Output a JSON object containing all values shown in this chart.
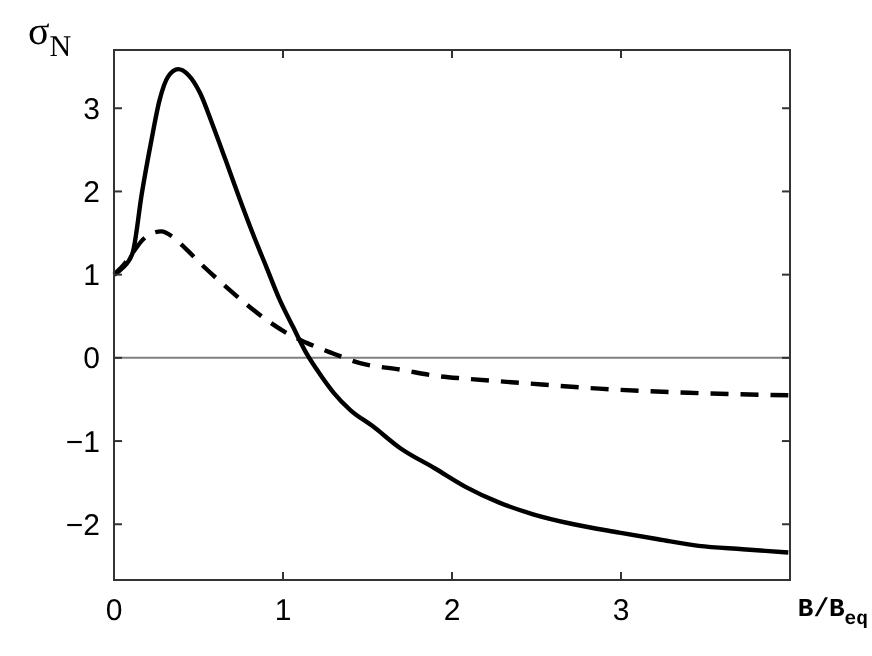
{
  "chart_data": {
    "type": "line",
    "xlabel": "B/B$_{eq}$",
    "ylabel": "σ$_{N}$",
    "xlim": [
      0,
      4
    ],
    "ylim": [
      -2.67,
      3.7
    ],
    "xticks": [
      0,
      1,
      2,
      3
    ],
    "yticks": [
      -2,
      -1,
      0,
      1,
      2,
      3
    ],
    "grid": false,
    "marker": "none",
    "ref_lines": [
      {
        "axis": "y",
        "value": 0,
        "color": "#808080"
      }
    ],
    "series": [
      {
        "color": "#000000",
        "line_style": "solid",
        "x": [
          0,
          0.05,
          0.11,
          0.165,
          0.22,
          0.27,
          0.32,
          0.38,
          0.44,
          0.51,
          0.58,
          0.66,
          0.74,
          0.82,
          0.9,
          0.98,
          1.06,
          1.14,
          1.22,
          1.3,
          1.4,
          1.53,
          1.69,
          1.9,
          2.08,
          2.28,
          2.48,
          2.72,
          2.99,
          3.22,
          3.46,
          3.72,
          3.99
        ],
        "values": [
          1,
          1.08,
          1.26,
          1.98,
          2.6,
          3.1,
          3.38,
          3.47,
          3.4,
          3.18,
          2.82,
          2.38,
          1.93,
          1.5,
          1.1,
          0.7,
          0.37,
          0.05,
          -0.2,
          -0.42,
          -0.63,
          -0.82,
          -1.08,
          -1.33,
          -1.55,
          -1.74,
          -1.88,
          -2.0,
          -2.1,
          -2.18,
          -2.26,
          -2.3,
          -2.34
        ]
      },
      {
        "color": "#000000",
        "line_style": "dashed",
        "x": [
          0,
          0.05,
          0.11,
          0.17,
          0.23,
          0.28,
          0.35,
          0.43,
          0.54,
          0.66,
          0.78,
          0.9,
          1.02,
          1.14,
          1.3,
          1.45,
          1.69,
          1.92,
          2.08,
          2.4,
          2.87,
          3.4,
          3.99
        ],
        "values": [
          1,
          1.1,
          1.26,
          1.42,
          1.5,
          1.52,
          1.45,
          1.3,
          1.08,
          0.86,
          0.65,
          0.46,
          0.3,
          0.18,
          0.05,
          -0.06,
          -0.14,
          -0.22,
          -0.25,
          -0.3,
          -0.37,
          -0.42,
          -0.45
        ]
      }
    ]
  }
}
